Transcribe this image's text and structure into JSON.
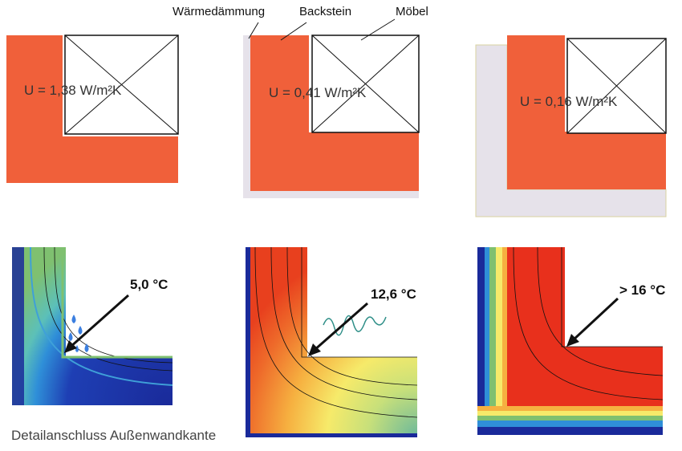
{
  "labels": {
    "insulation": "Wärmedämmung",
    "brick": "Backstein",
    "furniture": "Möbel"
  },
  "panels": [
    {
      "u_value": "U = 1,38 W/m²K",
      "surface_temp": "5,0 °C"
    },
    {
      "u_value": "U = 0,41 W/m²K",
      "surface_temp": "12,6 °C"
    },
    {
      "u_value": "U = 0,16 W/m²K",
      "surface_temp": "> 16 °C"
    }
  ],
  "caption": "Detailanschluss Außenwandkante",
  "colors": {
    "brick": "#f0603a",
    "insulation": "#e6e2ea",
    "cold": "#1a2a9a",
    "warm": "#e8301c"
  }
}
